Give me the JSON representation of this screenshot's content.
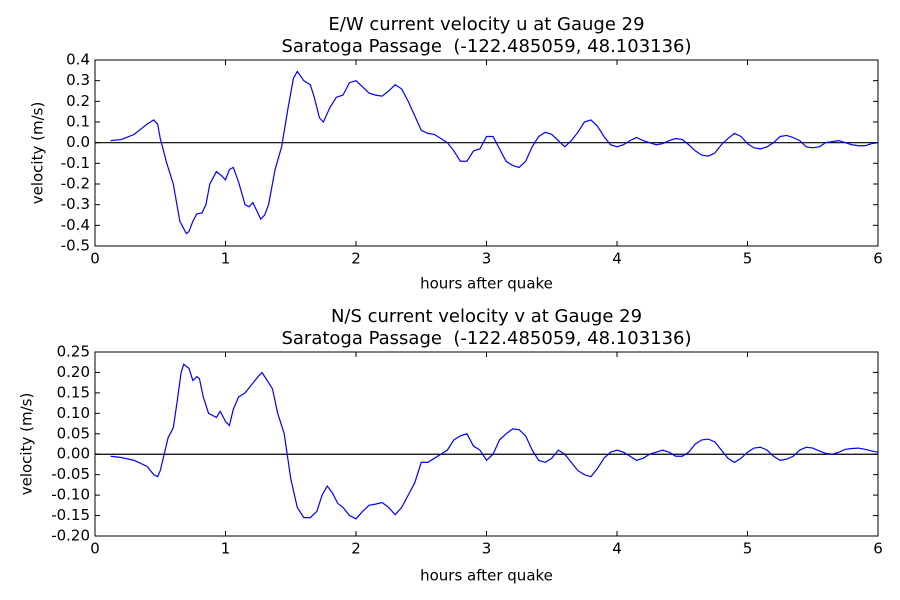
{
  "chart_data": [
    {
      "type": "line",
      "title": "E/W current velocity u at Gauge 29",
      "subtitle": "Saratoga Passage  (-122.485059, 48.103136)",
      "xlabel": "hours after quake",
      "ylabel": "velocity (m/s)",
      "xlim": [
        0,
        6
      ],
      "xticks": [
        0,
        1,
        2,
        3,
        4,
        5,
        6
      ],
      "ylim": [
        -0.5,
        0.4
      ],
      "yticks": [
        -0.5,
        -0.4,
        -0.3,
        -0.2,
        -0.1,
        {
          "value": 0,
          "label": "0.0"
        },
        0.1,
        0.2,
        0.3,
        0.4
      ],
      "hline": 0,
      "x": [
        0.12,
        0.2,
        0.3,
        0.4,
        0.45,
        0.48,
        0.5,
        0.55,
        0.6,
        0.65,
        0.7,
        0.72,
        0.75,
        0.78,
        0.82,
        0.85,
        0.88,
        0.93,
        0.97,
        1.0,
        1.03,
        1.06,
        1.1,
        1.15,
        1.18,
        1.21,
        1.24,
        1.27,
        1.3,
        1.33,
        1.38,
        1.43,
        1.48,
        1.52,
        1.55,
        1.6,
        1.65,
        1.68,
        1.72,
        1.75,
        1.8,
        1.85,
        1.9,
        1.95,
        2.0,
        2.05,
        2.1,
        2.15,
        2.2,
        2.25,
        2.3,
        2.35,
        2.4,
        2.45,
        2.5,
        2.55,
        2.6,
        2.65,
        2.7,
        2.75,
        2.8,
        2.85,
        2.9,
        2.95,
        3.0,
        3.05,
        3.1,
        3.15,
        3.2,
        3.25,
        3.3,
        3.35,
        3.4,
        3.45,
        3.5,
        3.55,
        3.6,
        3.65,
        3.7,
        3.75,
        3.8,
        3.85,
        3.9,
        3.95,
        4.0,
        4.05,
        4.1,
        4.15,
        4.2,
        4.25,
        4.3,
        4.35,
        4.4,
        4.45,
        4.5,
        4.55,
        4.6,
        4.65,
        4.7,
        4.75,
        4.8,
        4.85,
        4.9,
        4.95,
        5.0,
        5.05,
        5.1,
        5.15,
        5.2,
        5.25,
        5.3,
        5.35,
        5.4,
        5.45,
        5.5,
        5.55,
        5.6,
        5.65,
        5.7,
        5.75,
        5.8,
        5.85,
        5.9,
        5.95,
        6.0
      ],
      "series": [
        {
          "color": "#0000ff",
          "values": [
            0.01,
            0.015,
            0.04,
            0.09,
            0.11,
            0.09,
            0.02,
            -0.1,
            -0.2,
            -0.38,
            -0.44,
            -0.43,
            -0.38,
            -0.345,
            -0.34,
            -0.3,
            -0.2,
            -0.14,
            -0.16,
            -0.18,
            -0.13,
            -0.12,
            -0.19,
            -0.3,
            -0.31,
            -0.29,
            -0.33,
            -0.37,
            -0.35,
            -0.3,
            -0.13,
            -0.02,
            0.17,
            0.31,
            0.345,
            0.3,
            0.28,
            0.22,
            0.12,
            0.1,
            0.17,
            0.22,
            0.23,
            0.29,
            0.3,
            0.27,
            0.24,
            0.23,
            0.225,
            0.25,
            0.28,
            0.26,
            0.2,
            0.13,
            0.06,
            0.045,
            0.04,
            0.02,
            0.0,
            -0.04,
            -0.09,
            -0.09,
            -0.04,
            -0.03,
            0.03,
            0.03,
            -0.03,
            -0.09,
            -0.11,
            -0.12,
            -0.09,
            -0.02,
            0.03,
            0.05,
            0.04,
            0.01,
            -0.02,
            0.01,
            0.05,
            0.1,
            0.11,
            0.08,
            0.03,
            -0.01,
            -0.02,
            -0.01,
            0.01,
            0.025,
            0.01,
            0.0,
            -0.01,
            -0.005,
            0.01,
            0.02,
            0.015,
            -0.01,
            -0.04,
            -0.06,
            -0.065,
            -0.05,
            -0.01,
            0.02,
            0.045,
            0.03,
            -0.005,
            -0.025,
            -0.03,
            -0.02,
            0.0,
            0.03,
            0.035,
            0.025,
            0.01,
            -0.02,
            -0.025,
            -0.02,
            0.0,
            0.005,
            0.01,
            0.0,
            -0.01,
            -0.015,
            -0.015,
            -0.005,
            0.0
          ]
        }
      ]
    },
    {
      "type": "line",
      "title": "N/S current velocity v at Gauge 29",
      "subtitle": "Saratoga Passage  (-122.485059, 48.103136)",
      "xlabel": "hours after quake",
      "ylabel": "velocity (m/s)",
      "xlim": [
        0,
        6
      ],
      "xticks": [
        0,
        1,
        2,
        3,
        4,
        5,
        6
      ],
      "ylim": [
        -0.2,
        0.25
      ],
      "yticks": [
        {
          "value": -0.2,
          "label": "-0.20"
        },
        -0.15,
        {
          "value": -0.1,
          "label": "-0.10"
        },
        -0.05,
        {
          "value": 0,
          "label": "0.00"
        },
        0.05,
        {
          "value": 0.1,
          "label": "0.10"
        },
        0.15,
        {
          "value": 0.2,
          "label": "0.20"
        },
        0.25
      ],
      "hline": 0,
      "x": [
        0.12,
        0.2,
        0.3,
        0.4,
        0.45,
        0.48,
        0.5,
        0.53,
        0.56,
        0.6,
        0.63,
        0.66,
        0.68,
        0.72,
        0.75,
        0.78,
        0.8,
        0.83,
        0.87,
        0.9,
        0.93,
        0.96,
        1.0,
        1.03,
        1.06,
        1.1,
        1.15,
        1.2,
        1.25,
        1.28,
        1.32,
        1.36,
        1.4,
        1.45,
        1.5,
        1.55,
        1.6,
        1.65,
        1.7,
        1.74,
        1.78,
        1.82,
        1.86,
        1.9,
        1.95,
        2.0,
        2.05,
        2.1,
        2.15,
        2.2,
        2.25,
        2.3,
        2.35,
        2.4,
        2.45,
        2.5,
        2.55,
        2.6,
        2.65,
        2.7,
        2.75,
        2.8,
        2.85,
        2.9,
        2.95,
        3.0,
        3.05,
        3.1,
        3.15,
        3.2,
        3.25,
        3.3,
        3.35,
        3.4,
        3.45,
        3.5,
        3.55,
        3.6,
        3.65,
        3.7,
        3.75,
        3.8,
        3.85,
        3.9,
        3.95,
        4.0,
        4.05,
        4.1,
        4.15,
        4.2,
        4.25,
        4.3,
        4.35,
        4.4,
        4.45,
        4.5,
        4.55,
        4.6,
        4.65,
        4.7,
        4.75,
        4.8,
        4.85,
        4.9,
        4.95,
        5.0,
        5.05,
        5.1,
        5.15,
        5.2,
        5.25,
        5.3,
        5.35,
        5.4,
        5.45,
        5.5,
        5.55,
        5.6,
        5.65,
        5.7,
        5.75,
        5.8,
        5.85,
        5.9,
        5.95,
        6.0
      ],
      "series": [
        {
          "color": "#0000ff",
          "values": [
            -0.005,
            -0.008,
            -0.015,
            -0.03,
            -0.05,
            -0.055,
            -0.04,
            0.0,
            0.04,
            0.065,
            0.13,
            0.2,
            0.22,
            0.21,
            0.18,
            0.19,
            0.185,
            0.14,
            0.1,
            0.095,
            0.09,
            0.105,
            0.08,
            0.07,
            0.11,
            0.14,
            0.15,
            0.17,
            0.19,
            0.2,
            0.18,
            0.16,
            0.1,
            0.05,
            -0.06,
            -0.13,
            -0.155,
            -0.155,
            -0.14,
            -0.1,
            -0.078,
            -0.095,
            -0.12,
            -0.13,
            -0.15,
            -0.158,
            -0.14,
            -0.125,
            -0.122,
            -0.118,
            -0.13,
            -0.148,
            -0.13,
            -0.1,
            -0.07,
            -0.02,
            -0.02,
            -0.01,
            0.0,
            0.01,
            0.035,
            0.045,
            0.05,
            0.02,
            0.01,
            -0.015,
            0.0,
            0.035,
            0.05,
            0.062,
            0.06,
            0.045,
            0.01,
            -0.015,
            -0.02,
            -0.01,
            0.01,
            0.0,
            -0.02,
            -0.04,
            -0.05,
            -0.055,
            -0.035,
            -0.01,
            0.005,
            0.01,
            0.005,
            -0.005,
            -0.015,
            -0.01,
            0.0,
            0.005,
            0.01,
            0.005,
            -0.005,
            -0.005,
            0.005,
            0.025,
            0.035,
            0.037,
            0.03,
            0.01,
            -0.01,
            -0.02,
            -0.01,
            0.005,
            0.015,
            0.017,
            0.01,
            -0.005,
            -0.015,
            -0.012,
            -0.005,
            0.01,
            0.017,
            0.015,
            0.008,
            0.002,
            0.0,
            0.005,
            0.012,
            0.014,
            0.015,
            0.012,
            0.008,
            0.005
          ]
        }
      ]
    }
  ]
}
